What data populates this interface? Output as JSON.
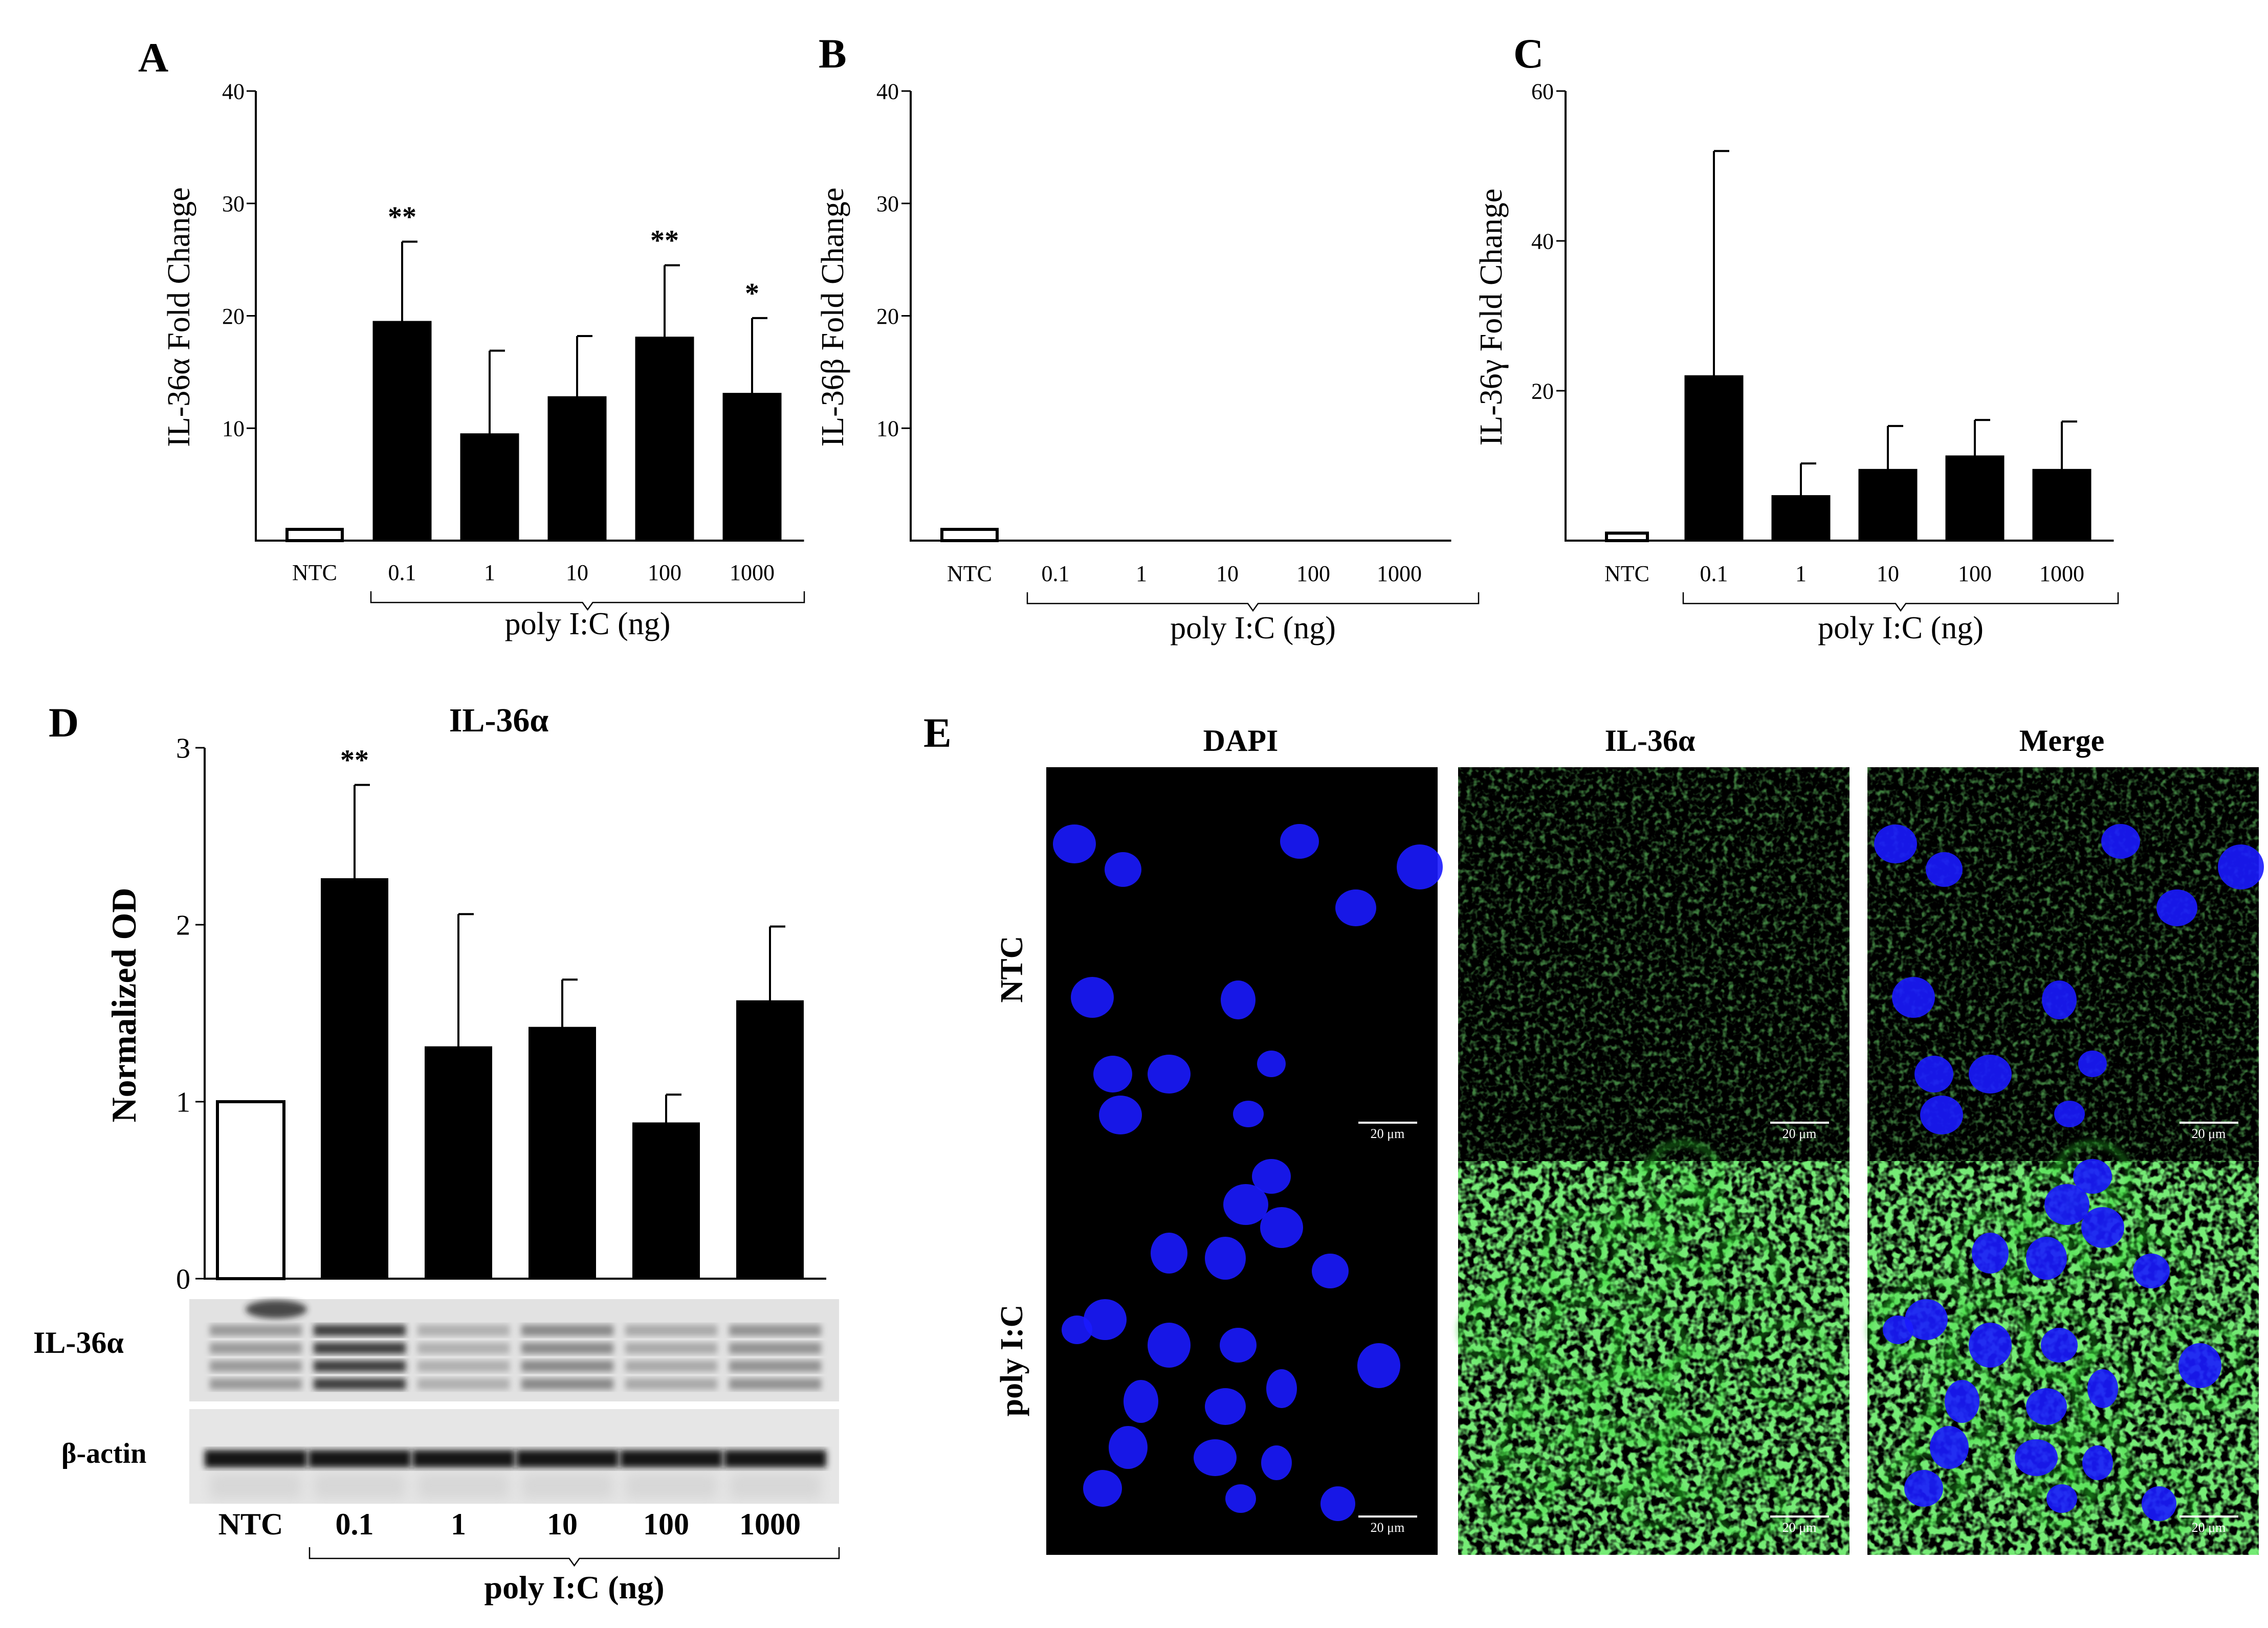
{
  "colors": {
    "bar_filled": "#000000",
    "bar_control": "#ffffff",
    "axis": "#000000",
    "dapi": "#1a1aff",
    "il36a": "#2fd32f",
    "micrograph_bg": "#000000"
  },
  "chart_data": [
    {
      "panel": "A",
      "type": "bar",
      "categories": [
        "NTC",
        "0.1",
        "1",
        "10",
        "100",
        "1000"
      ],
      "values": [
        1,
        19.5,
        9.5,
        12.8,
        18.1,
        13.1
      ],
      "errors": [
        0,
        7.1,
        7.4,
        5.4,
        6.4,
        6.7
      ],
      "significance": [
        "",
        "**",
        "",
        "",
        "**",
        "*"
      ],
      "ylabel": "IL-36α Fold Change",
      "xlabel": "poly I:C (ng)",
      "ylim": [
        0,
        40
      ],
      "yticks": [
        "10",
        "20",
        "30",
        "40"
      ],
      "open_first_bar": true,
      "grid": false
    },
    {
      "panel": "B",
      "type": "bar",
      "categories": [
        "NTC",
        "0.1",
        "1",
        "10",
        "100",
        "1000"
      ],
      "values": [
        1,
        0,
        0,
        0,
        0,
        0
      ],
      "errors": [
        0,
        0,
        0,
        0,
        0,
        0
      ],
      "significance": [
        "",
        "",
        "",
        "",
        "",
        ""
      ],
      "ylabel": "IL-36β Fold Change",
      "xlabel": "poly I:C (ng)",
      "ylim": [
        0,
        40
      ],
      "yticks": [
        "10",
        "20",
        "30",
        "40"
      ],
      "open_first_bar": true,
      "grid": false
    },
    {
      "panel": "C",
      "type": "bar",
      "categories": [
        "NTC",
        "0.1",
        "1",
        "10",
        "100",
        "1000"
      ],
      "values": [
        1,
        22,
        6,
        9.5,
        11.3,
        9.5
      ],
      "errors": [
        0,
        30,
        4.3,
        5.8,
        4.8,
        6.4
      ],
      "significance": [
        "",
        "",
        "",
        "",
        "",
        ""
      ],
      "ylabel": "IL-36γ Fold Change",
      "xlabel": "poly I:C (ng)",
      "ylim": [
        0,
        60
      ],
      "yticks": [
        "20",
        "40",
        "60"
      ],
      "open_first_bar": true,
      "grid": false
    },
    {
      "panel": "D",
      "type": "bar",
      "title": "IL-36α",
      "categories": [
        "NTC",
        "0.1",
        "1",
        "10",
        "100",
        "1000"
      ],
      "values": [
        1.0,
        2.26,
        1.31,
        1.42,
        0.88,
        1.57
      ],
      "errors": [
        0,
        0.53,
        0.75,
        0.27,
        0.16,
        0.42
      ],
      "significance": [
        "",
        "**",
        "",
        "",
        "",
        ""
      ],
      "ylabel": "Normalized OD",
      "xlabel": "poly I:C (ng)",
      "ylim": [
        0,
        3
      ],
      "yticks": [
        "0",
        "1",
        "2",
        "3"
      ],
      "open_first_bar": true,
      "grid": false,
      "blot_rows": [
        "IL-36α",
        "β-actin"
      ],
      "blot_il36a_intensity": [
        0.45,
        0.95,
        0.3,
        0.55,
        0.35,
        0.5
      ]
    }
  ],
  "panels": {
    "A": "A",
    "B": "B",
    "C": "C",
    "D": "D",
    "E": "E"
  },
  "micrographs": {
    "columns": [
      "DAPI",
      "IL-36α",
      "Merge"
    ],
    "rows": [
      "NTC",
      "poly I:C"
    ],
    "scale_bar": "20 μm"
  }
}
